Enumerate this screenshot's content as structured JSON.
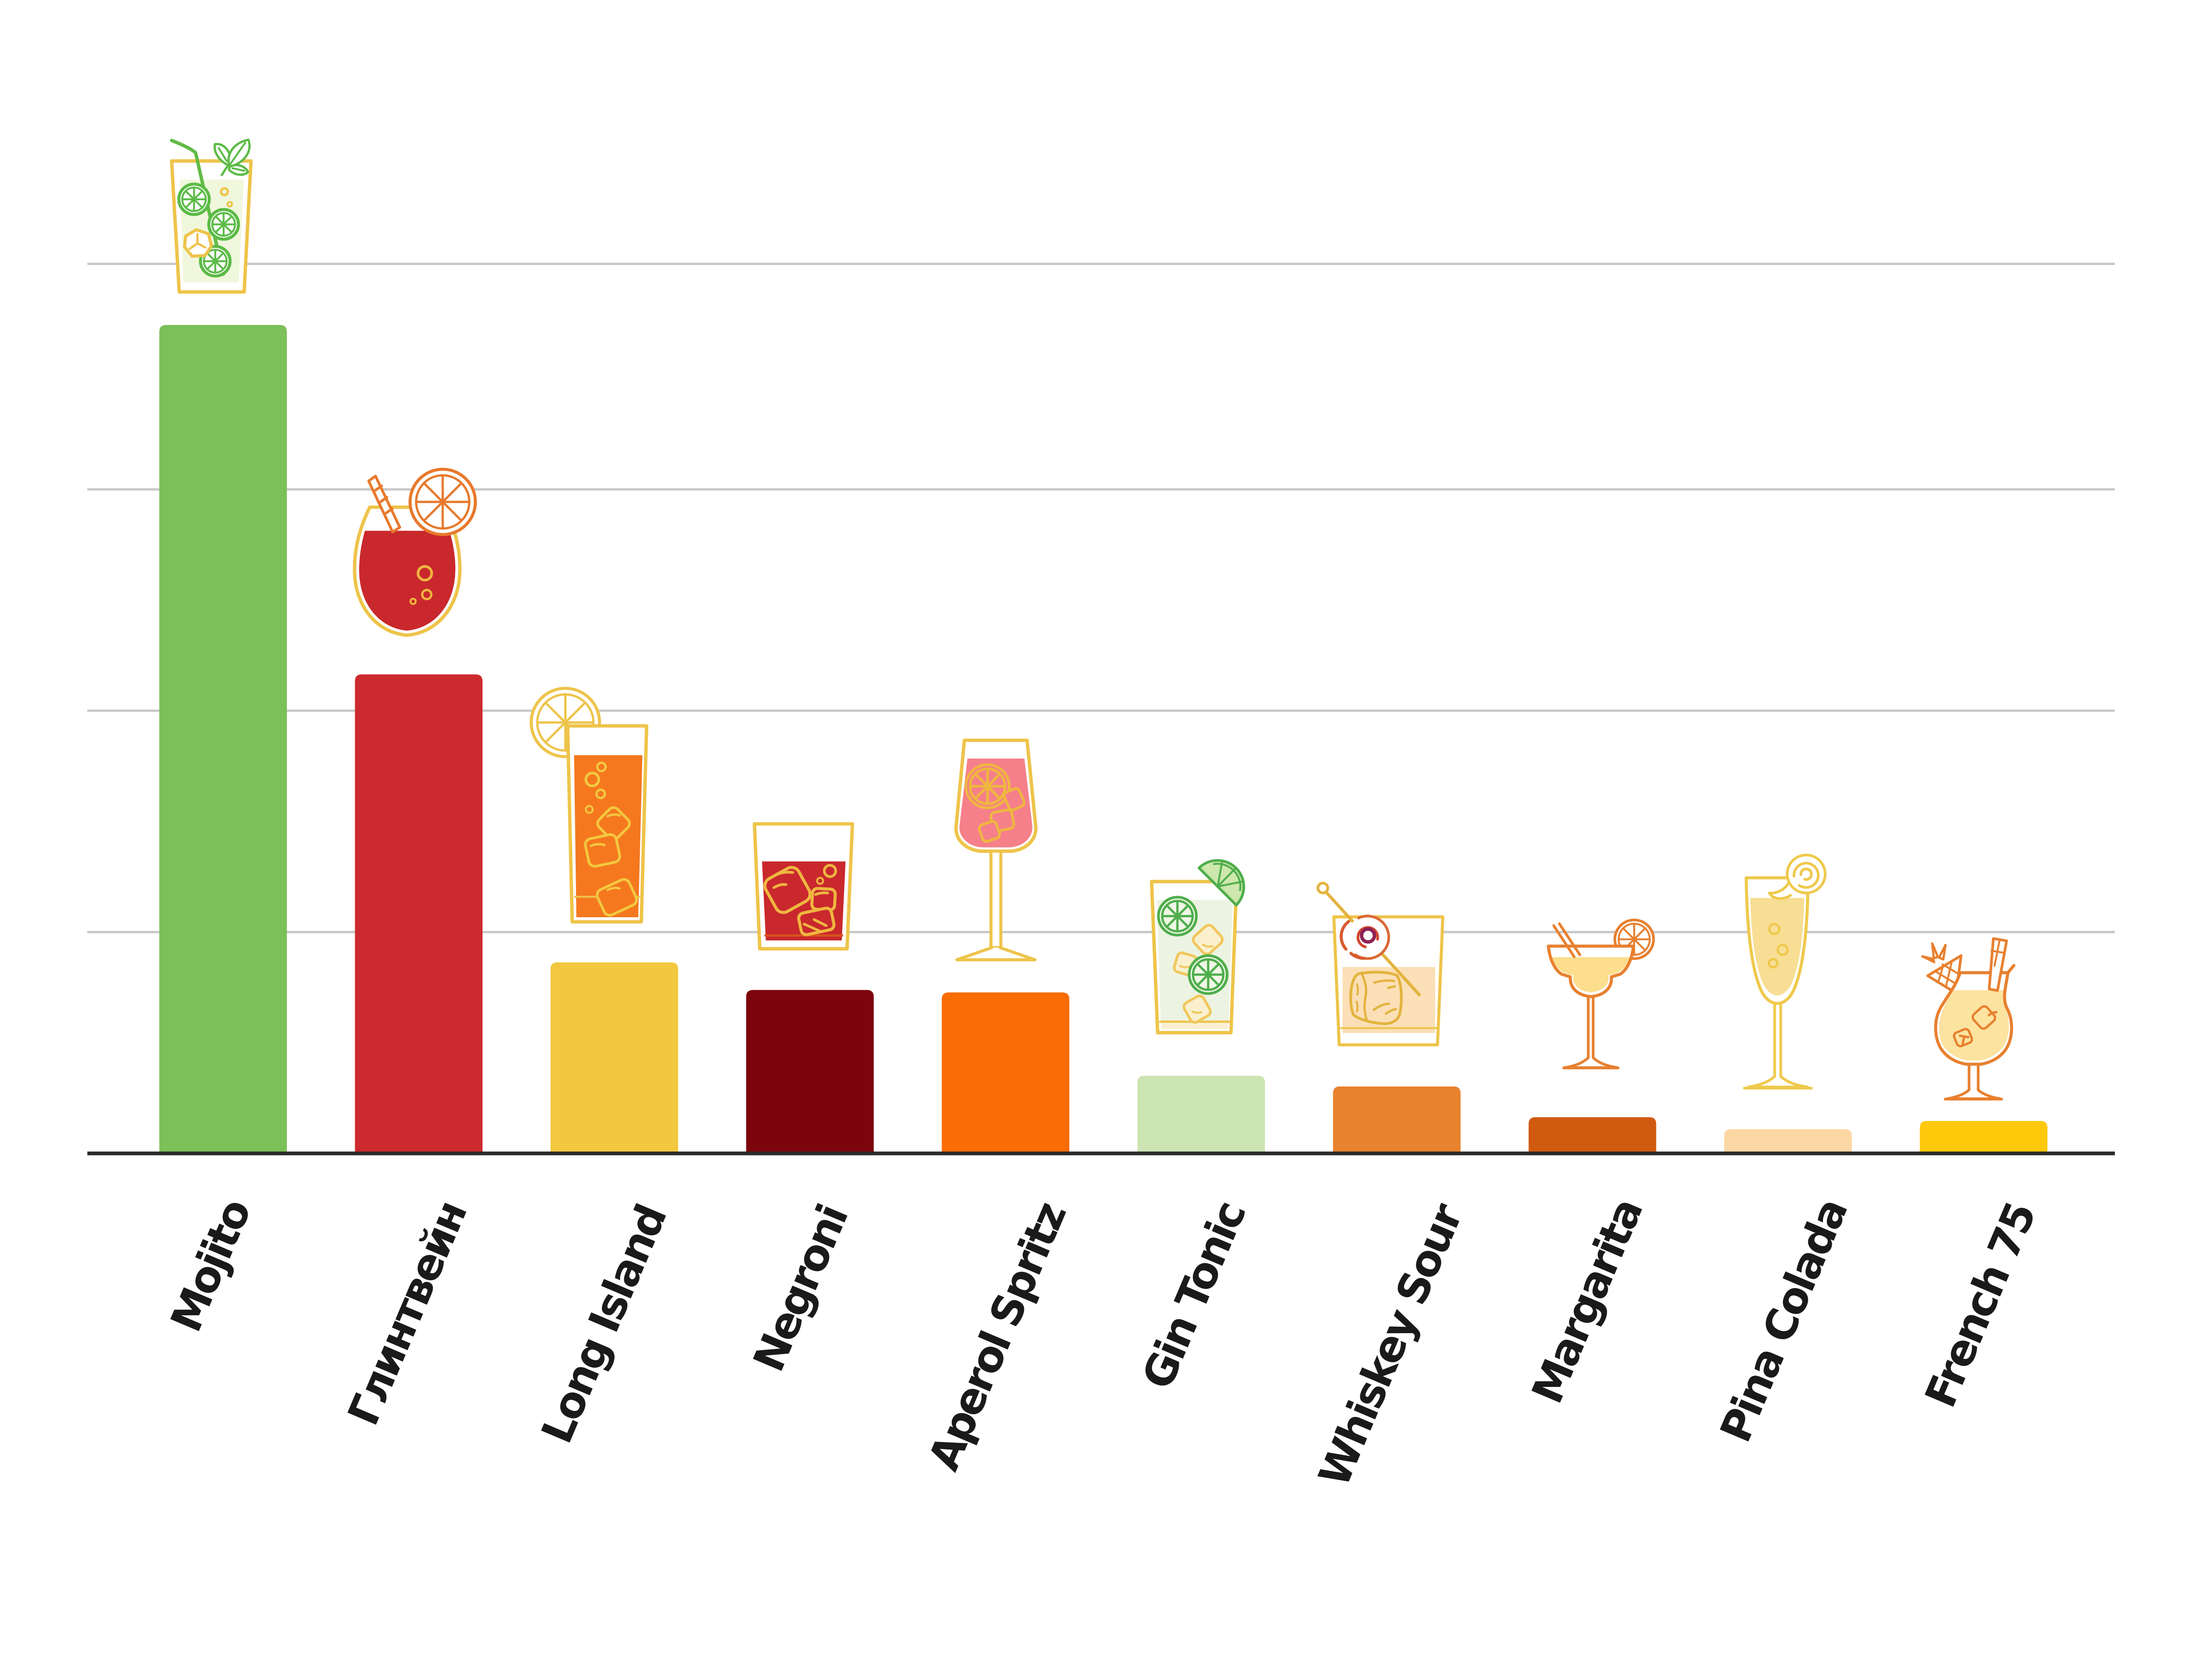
{
  "chart_data": {
    "type": "bar",
    "title": "",
    "categories": [
      "Mojito",
      "Глинтвейн",
      "Long Island",
      "Negroni",
      "Aperol Spritz",
      "Gin Tonic",
      "Whiskey Sour",
      "Margarita",
      "Pina Colada",
      "French 75"
    ],
    "values": [
      3.725,
      2.154,
      0.859,
      0.735,
      0.724,
      0.349,
      0.301,
      0.163,
      0.109,
      0.146
    ],
    "bar_colors": [
      "#7cc05a",
      "#cc2a2e",
      "#f3c83f",
      "#7d040c",
      "#fa6d05",
      "#cde4b3",
      "#e8822e",
      "#d15a11",
      "#fad7a3",
      "#fec80b"
    ],
    "icon_names": [
      "mojito-glass-icon",
      "mulled-wine-glass-icon",
      "long-island-glass-icon",
      "negroni-glass-icon",
      "aperol-spritz-glass-icon",
      "gin-tonic-glass-icon",
      "whiskey-sour-glass-icon",
      "margarita-glass-icon",
      "pina-colada-flute-icon",
      "french-75-hurricane-icon"
    ],
    "xlabel": "",
    "ylabel": "",
    "ylim": [
      0,
      4.35
    ],
    "gridlines_at": [
      1,
      2,
      3,
      4
    ],
    "tick_labels_shown": false,
    "legend": "none",
    "grid_color": "#c7c7c7",
    "axis_color": "#2b2b2b",
    "label_color": "#1a1a1a",
    "background_color": "#ffffff"
  }
}
